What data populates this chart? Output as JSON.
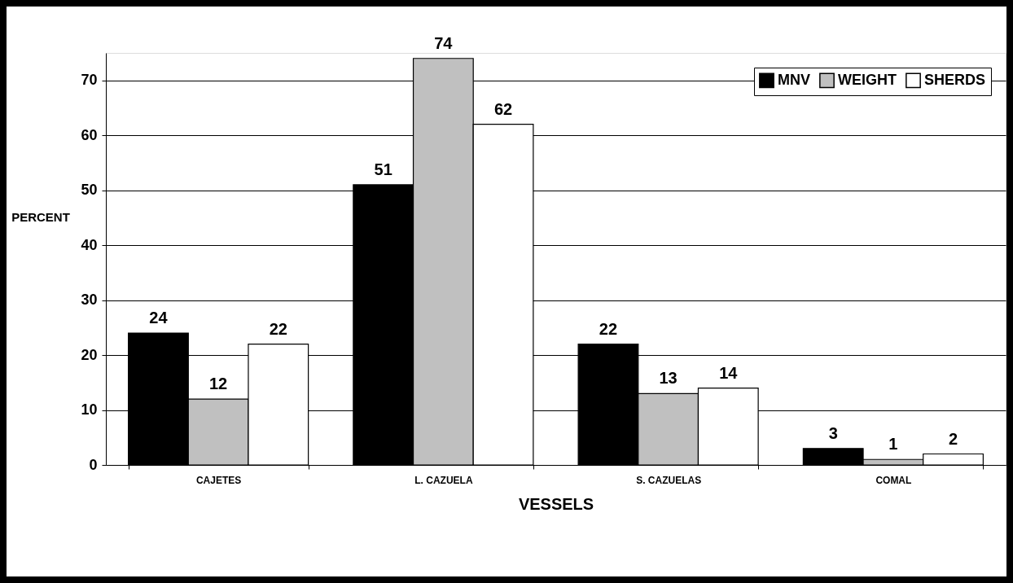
{
  "chart_data": {
    "type": "bar",
    "xlabel": "VESSELS",
    "ylabel": "PERCENT",
    "categories": [
      "CAJETES",
      "L. CAZUELA",
      "S. CAZUELAS",
      "COMAL"
    ],
    "series": [
      {
        "name": "MNV",
        "color": "#000000",
        "values": [
          24,
          51,
          22,
          3
        ]
      },
      {
        "name": "WEIGHT",
        "color": "#c0c0c0",
        "values": [
          12,
          74,
          13,
          1
        ]
      },
      {
        "name": "SHERDS",
        "color": "#ffffff",
        "values": [
          22,
          62,
          14,
          2
        ]
      }
    ],
    "ylim": [
      0,
      75
    ],
    "yticks": [
      0,
      10,
      20,
      30,
      40,
      50,
      60,
      70
    ],
    "grid": "y",
    "legend": "top right",
    "data_labels": true
  }
}
